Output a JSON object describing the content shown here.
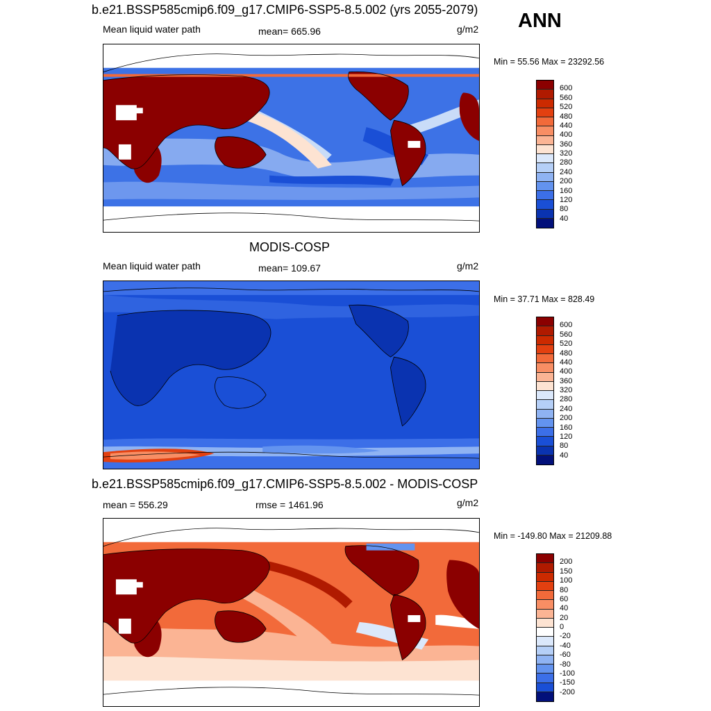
{
  "header": {
    "season": "ANN"
  },
  "panels": [
    {
      "title": "b.e21.BSSP585cmip6.f09_g17.CMIP6-SSP5-8.5.002 (yrs 2055-2079)",
      "left_label": "Mean liquid water path",
      "center_label": "mean= 665.96",
      "units": "g/m2",
      "minmax": "Min =  55.56 Max = 23292.56",
      "levels": [
        "600",
        "560",
        "520",
        "480",
        "440",
        "400",
        "360",
        "320",
        "280",
        "240",
        "200",
        "160",
        "120",
        "80",
        "40"
      ],
      "colors": [
        "#8b0000",
        "#b01a00",
        "#cc2a00",
        "#e34010",
        "#f26a3a",
        "#f88e64",
        "#fbb494",
        "#fde3d2",
        "#dbe8fb",
        "#b5cff7",
        "#8fb3f3",
        "#6393ef",
        "#3c6fe8",
        "#1a4fd6",
        "#0a33b0",
        "#02107a"
      ],
      "map_style": "model"
    },
    {
      "title": "MODIS-COSP",
      "left_label": "Mean liquid water path",
      "center_label": "mean= 109.67",
      "units": "g/m2",
      "minmax": "Min =  37.71 Max = 828.49",
      "levels": [
        "600",
        "560",
        "520",
        "480",
        "440",
        "400",
        "360",
        "320",
        "280",
        "240",
        "200",
        "160",
        "120",
        "80",
        "40"
      ],
      "colors": [
        "#8b0000",
        "#b01a00",
        "#cc2a00",
        "#e34010",
        "#f26a3a",
        "#f88e64",
        "#fbb494",
        "#fde3d2",
        "#dbe8fb",
        "#b5cff7",
        "#8fb3f3",
        "#6393ef",
        "#3c6fe8",
        "#1a4fd6",
        "#0a33b0",
        "#02107a"
      ],
      "map_style": "obs"
    },
    {
      "title": "b.e21.BSSP585cmip6.f09_g17.CMIP6-SSP5-8.5.002 - MODIS-COSP",
      "left_label": "mean = 556.29",
      "center_label": "rmse = 1461.96",
      "units": "g/m2",
      "minmax": "Min = -149.80 Max = 21209.88",
      "levels": [
        "200",
        "150",
        "100",
        "80",
        "60",
        "40",
        "20",
        "0",
        "-20",
        "-40",
        "-60",
        "-80",
        "-100",
        "-150",
        "-200"
      ],
      "colors": [
        "#8b0000",
        "#b01a00",
        "#cc2a00",
        "#e34010",
        "#f26a3a",
        "#f88e64",
        "#fbb494",
        "#fde3d2",
        "#ffffff",
        "#dbe8fb",
        "#b5cff7",
        "#8fb3f3",
        "#6393ef",
        "#3c6fe8",
        "#1a4fd6",
        "#02107a"
      ],
      "map_style": "diff"
    }
  ]
}
